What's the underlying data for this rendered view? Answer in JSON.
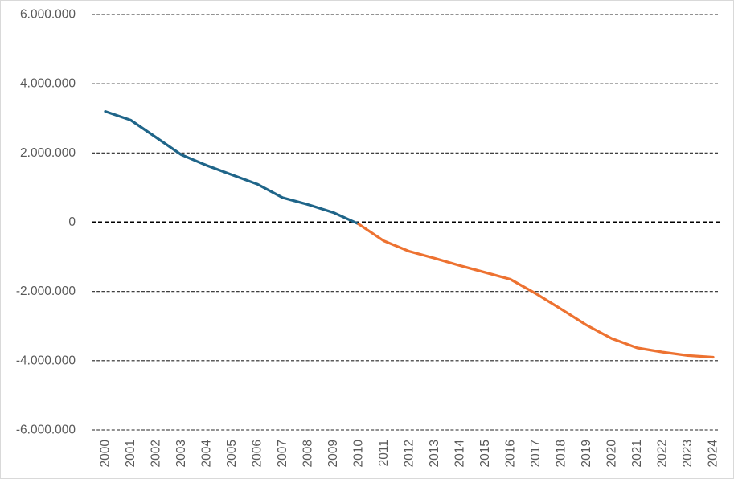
{
  "chart_data": {
    "type": "line",
    "title": "",
    "xlabel": "",
    "ylabel": "",
    "x_start_year": 2000,
    "x_tick_labels": [
      "2000",
      "2001",
      "2002",
      "2003",
      "2004",
      "2005",
      "2006",
      "2007",
      "2008",
      "2009",
      "2010",
      "2011",
      "2012",
      "2013",
      "2014",
      "2015",
      "2016",
      "2017",
      "2018",
      "2019",
      "2020",
      "2021",
      "2022",
      "2023",
      "2024"
    ],
    "y_ticks": [
      6000000,
      4000000,
      2000000,
      0,
      -2000000,
      -4000000,
      -6000000
    ],
    "y_tick_labels": [
      "6.000.000",
      "4.000.000",
      "2.000.000",
      "0",
      "-2.000.000",
      "-4.000.000",
      "-6.000.000"
    ],
    "ylim": [
      -6000000,
      6000000
    ],
    "grid": "horizontal-dashed",
    "zero_line_bold": true,
    "legend": "none",
    "colors": {
      "segment_2000_2010": "#1F6589",
      "segment_2010_2024": "#ED7231",
      "tick_label": "#595959",
      "gridline": "#262626",
      "zero_line": "#000000",
      "background": "#FFFFFF",
      "frame_border": "#D9D9D9"
    },
    "series": [
      {
        "name": "segment_2000_2010",
        "color": "#1F6589",
        "x": [
          2000,
          2001,
          2002,
          2003,
          2004,
          2005,
          2006,
          2007,
          2008,
          2009,
          2010
        ],
        "values": [
          3200000,
          2950000,
          2450000,
          1950000,
          1640000,
          1370000,
          1100000,
          710000,
          510000,
          280000,
          -50000
        ]
      },
      {
        "name": "segment_2010_2024",
        "color": "#ED7231",
        "x": [
          2010,
          2011,
          2012,
          2013,
          2014,
          2015,
          2016,
          2017,
          2018,
          2019,
          2020,
          2021,
          2022,
          2023,
          2024
        ],
        "values": [
          -50000,
          -540000,
          -840000,
          -1040000,
          -1250000,
          -1450000,
          -1650000,
          -2060000,
          -2510000,
          -2970000,
          -3360000,
          -3630000,
          -3750000,
          -3850000,
          -3900000
        ]
      }
    ]
  }
}
